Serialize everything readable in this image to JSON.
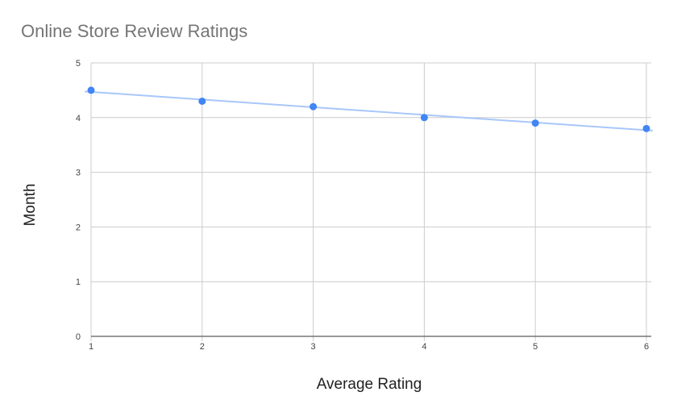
{
  "chart_data": {
    "type": "scatter",
    "title": "Online Store Review Ratings",
    "xlabel": "Average Rating",
    "ylabel": "Month",
    "x": [
      1,
      2,
      3,
      4,
      5,
      6
    ],
    "y": [
      4.5,
      4.3,
      4.2,
      4.0,
      3.9,
      3.8
    ],
    "xlim": [
      1,
      6
    ],
    "ylim": [
      0,
      5
    ],
    "x_ticks": [
      "1",
      "2",
      "3",
      "4",
      "5",
      "6"
    ],
    "y_ticks": [
      "0",
      "1",
      "2",
      "3",
      "4",
      "5"
    ],
    "trendline": {
      "type": "linear",
      "start": [
        1,
        4.47
      ],
      "end": [
        6,
        3.77
      ],
      "color": "#a8c7fa"
    },
    "grid": true,
    "legend": "none",
    "point_color": "#4285f4"
  }
}
